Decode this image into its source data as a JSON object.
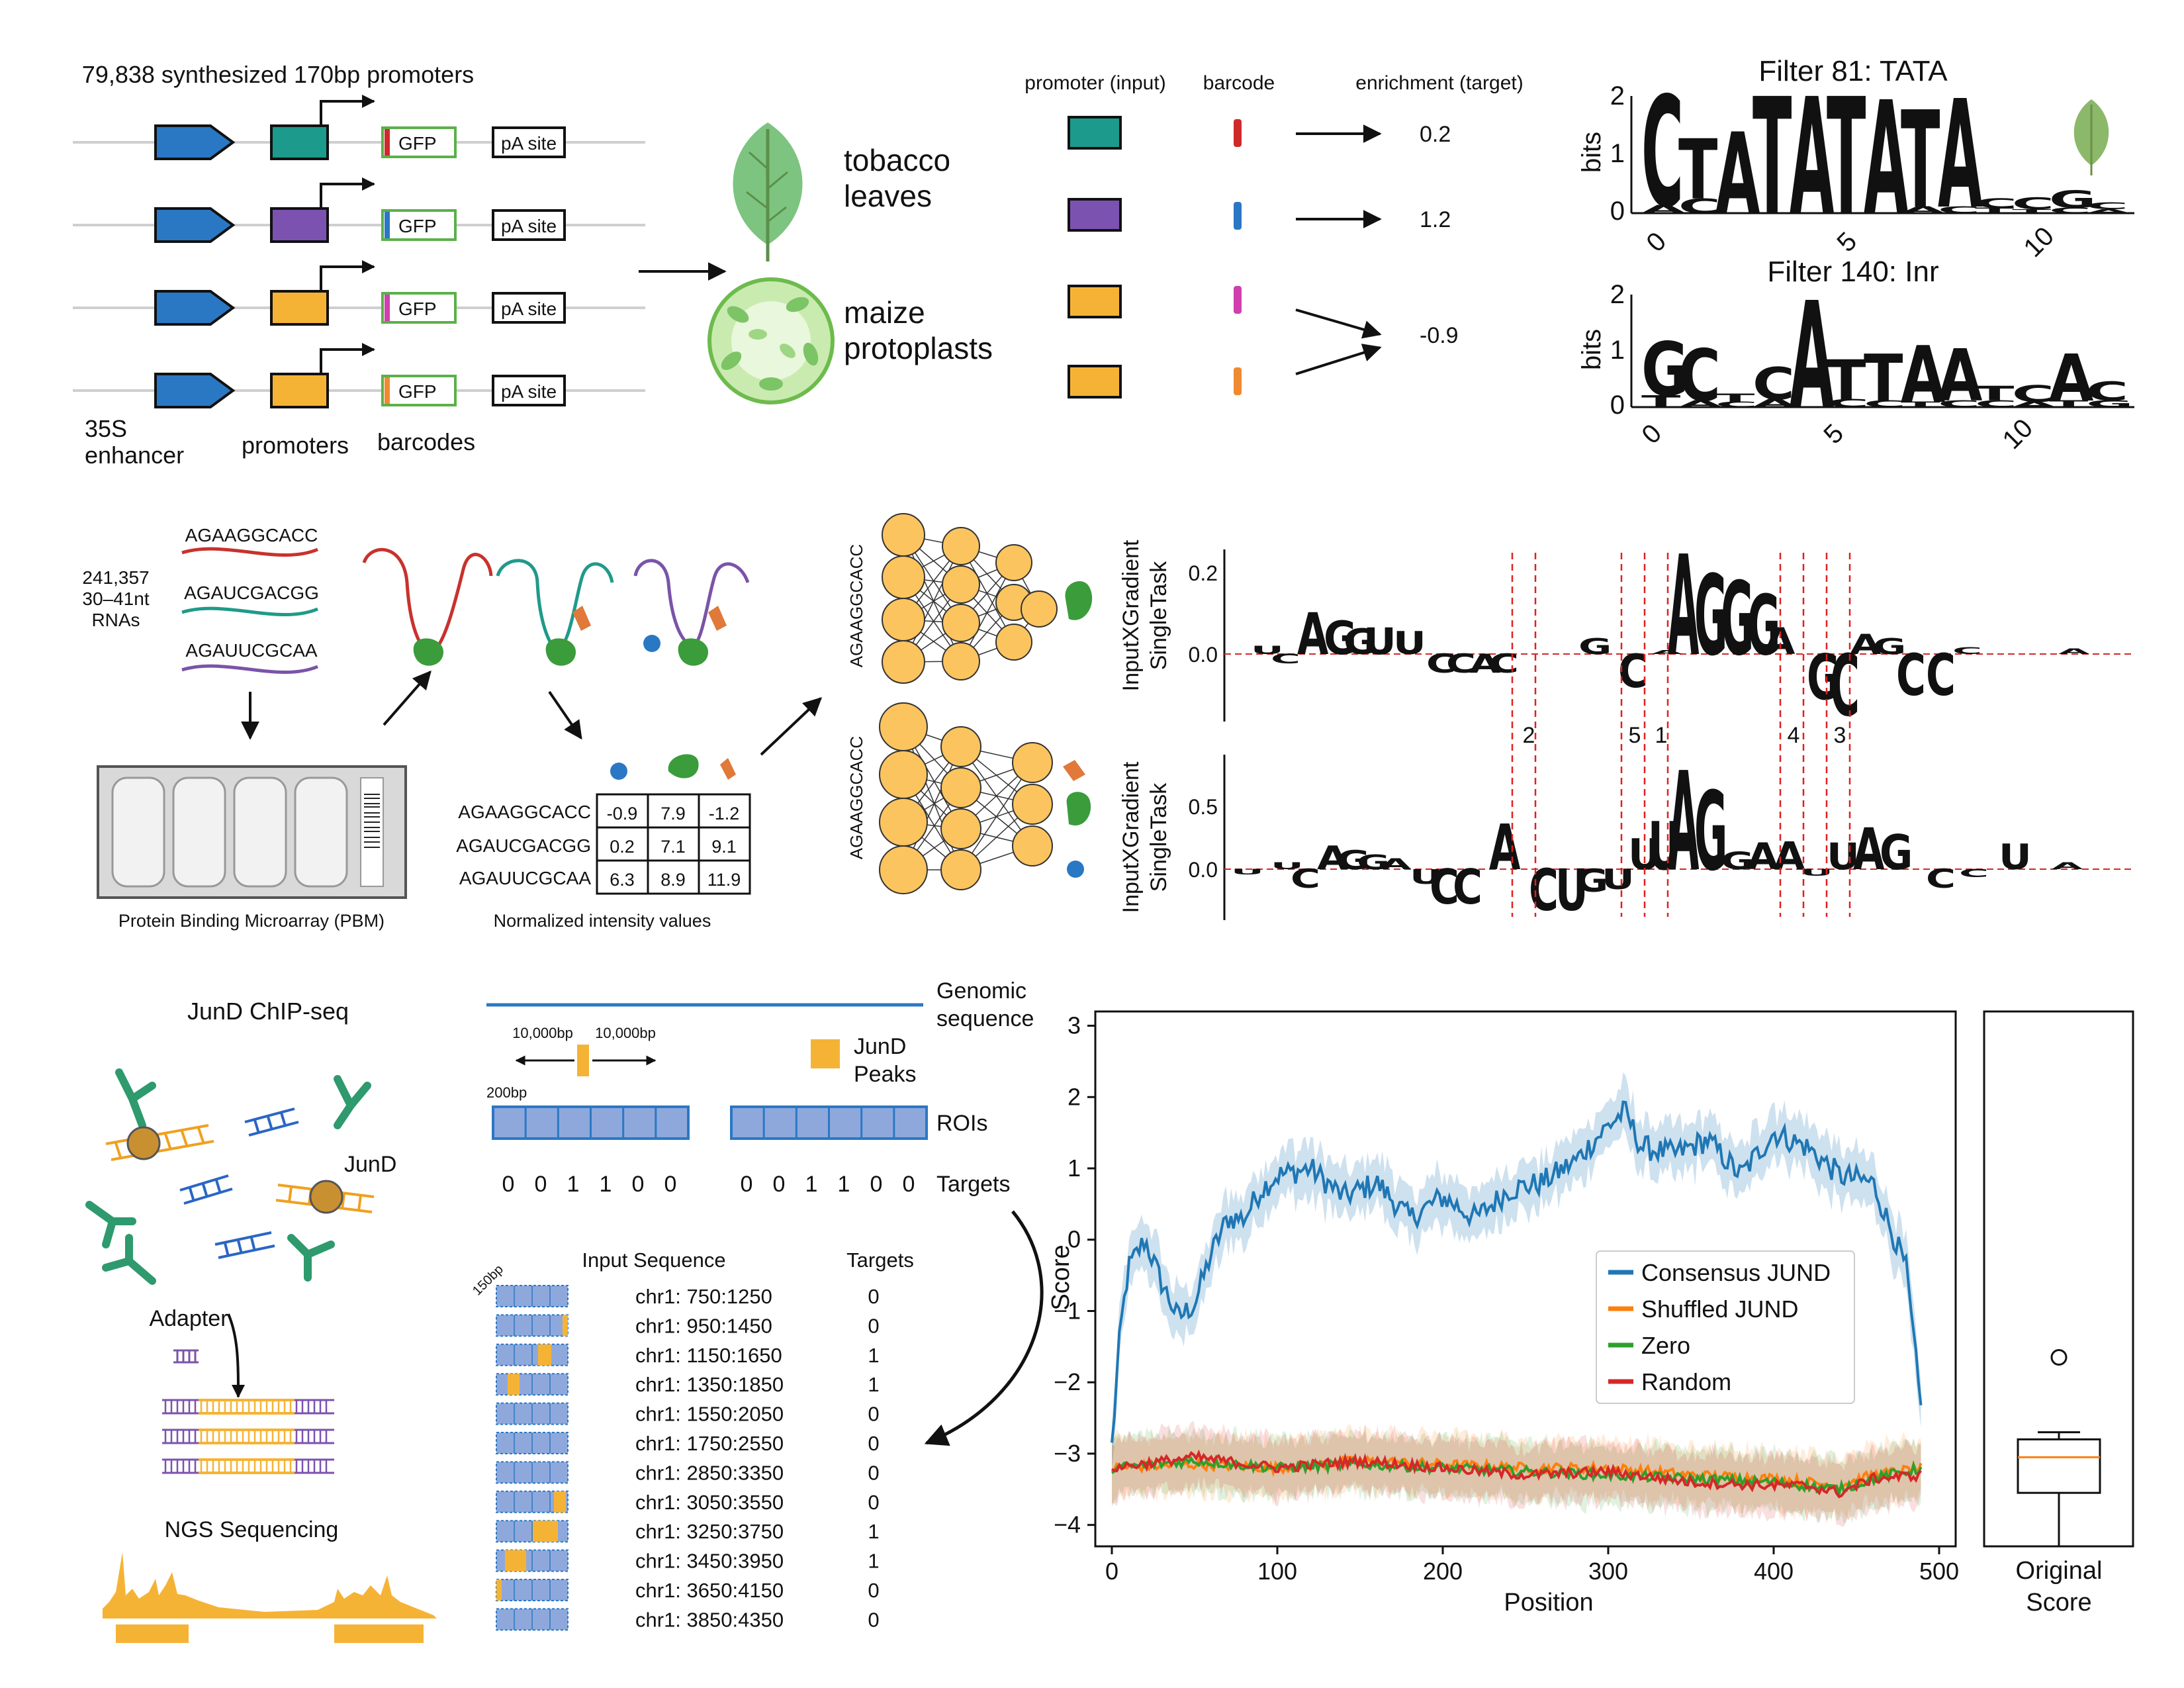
{
  "colors": {
    "blue": "#2a78c4",
    "teal": "#1c9a8c",
    "purple": "#7b52b0",
    "orange": "#f5b335",
    "red": "#cf2a2a",
    "green": "#2c8a3a",
    "pink": "#cf3fae",
    "seq_red": "#c8322d",
    "seq_teal": "#1f9a8a",
    "seq_purple": "#7a54a8",
    "nn_node": "#fbc45f",
    "roi": "#8fa8dc",
    "logo_A": "#1b8a3a",
    "logo_C": "#2b4fa6",
    "logo_G": "#f0a800",
    "logo_T": "#e52b28",
    "jund": "#1f77b4",
    "shuffled": "#ff7f0e",
    "zero": "#2ca02c",
    "random": "#d62728"
  },
  "panel_a": {
    "title": "79,838 synthesized 170bp promoters",
    "gfp": "GFP",
    "pa_site": "pA site",
    "enhancer_label": [
      "35S",
      "enhancer"
    ],
    "promoters_label": "promoters",
    "barcodes_label": "barcodes",
    "tobacco": [
      "tobacco",
      "leaves"
    ],
    "maize": [
      "maize",
      "protoplasts"
    ],
    "col_promoter": "promoter (input)",
    "col_barcode": "barcode",
    "col_enrichment": "enrichment (target)",
    "enrichment_values": [
      "0.2",
      "1.2",
      "-0.9"
    ]
  },
  "motif_logos": [
    {
      "title": "Filter 81: TATA",
      "ylabel": "bits",
      "yticks": [
        "2",
        "1",
        "0"
      ],
      "xticks": [
        "0",
        "5",
        "10"
      ],
      "letters": "CTATATATA"
    },
    {
      "title": "Filter 140: Inr",
      "ylabel": "bits",
      "yticks": [
        "2",
        "1",
        "0"
      ],
      "xticks": [
        "0",
        "5",
        "10"
      ],
      "letters": "GCCATTAAA"
    }
  ],
  "panel_b": {
    "rna_count": [
      "241,357",
      "30–41nt",
      "RNAs"
    ],
    "sequences": [
      "AGAAGGCACC",
      "AGAUCGACGG",
      "AGAUUCGCAA"
    ],
    "pbm_label": "Protein Binding Microarray (PBM)",
    "intensity_label": "Normalized intensity values",
    "intensity_table": [
      [
        "-0.9",
        "7.9",
        "-1.2"
      ],
      [
        "0.2",
        "7.1",
        "9.1"
      ],
      [
        "6.3",
        "8.9",
        "11.9"
      ]
    ],
    "nn_input_seq": "AGAAGGCACC"
  },
  "attribution": {
    "ylabel": [
      "InputXGradient",
      "SingleTask"
    ],
    "top_yticks": [
      "0.2",
      "0.0"
    ],
    "bottom_yticks": [
      "0.5",
      "0.0"
    ],
    "markers": [
      "2",
      "5",
      "1",
      "4",
      "3"
    ]
  },
  "panel_c": {
    "chip_title": "JunD ChIP-seq",
    "jund_label": "JunD",
    "adapter": "Adapter",
    "ngs": "NGS Sequencing",
    "genomic": [
      "Genomic",
      "sequence"
    ],
    "bp_left": "10,000bp",
    "bp_right": "10,000bp",
    "bp_200": "200bp",
    "jund_peaks": [
      "JunD",
      "Peaks"
    ],
    "rois": "ROIs",
    "targets_label": "Targets",
    "targets_row1": [
      "0",
      "0",
      "1",
      "1",
      "0",
      "0"
    ],
    "targets_row2": [
      "0",
      "0",
      "1",
      "1",
      "0",
      "0"
    ],
    "bp_150": "150bp",
    "input_header": "Input Sequence",
    "targets_header": "Targets",
    "input_rows": [
      {
        "region": "chr1: 750:1250",
        "target": "0"
      },
      {
        "region": "chr1: 950:1450",
        "target": "0"
      },
      {
        "region": "chr1: 1150:1650",
        "target": "1"
      },
      {
        "region": "chr1: 1350:1850",
        "target": "1"
      },
      {
        "region": "chr1: 1550:2050",
        "target": "0"
      },
      {
        "region": "chr1: 1750:2550",
        "target": "0"
      },
      {
        "region": "chr1: 2850:3350",
        "target": "0"
      },
      {
        "region": "chr1: 3050:3550",
        "target": "0"
      },
      {
        "region": "chr1: 3250:3750",
        "target": "1"
      },
      {
        "region": "chr1: 3450:3950",
        "target": "1"
      },
      {
        "region": "chr1: 3650:4150",
        "target": "0"
      },
      {
        "region": "chr1: 3850:4350",
        "target": "0"
      }
    ]
  },
  "chart_data": [
    {
      "type": "line",
      "xlabel": "Position",
      "ylabel": "Score",
      "xlim": [
        0,
        500
      ],
      "ylim": [
        -4.3,
        3.2
      ],
      "xticks": [
        "0",
        "100",
        "200",
        "300",
        "400",
        "500"
      ],
      "yticks": [
        "3",
        "2",
        "1",
        "0",
        "−1",
        "−2",
        "−3",
        "−4"
      ],
      "legend_position": "center-right",
      "series": [
        {
          "name": "Consensus JUND",
          "x": [
            0,
            5,
            10,
            20,
            30,
            40,
            50,
            60,
            70,
            80,
            90,
            100,
            120,
            140,
            160,
            180,
            200,
            220,
            240,
            260,
            280,
            300,
            310,
            320,
            340,
            360,
            380,
            400,
            420,
            440,
            460,
            470,
            480,
            490
          ],
          "y": [
            -2.9,
            -1.3,
            -0.4,
            0.0,
            -0.6,
            -1.1,
            -0.9,
            -0.2,
            0.3,
            0.3,
            0.7,
            0.9,
            1.0,
            0.6,
            0.8,
            0.3,
            0.6,
            0.3,
            0.7,
            0.8,
            1.1,
            1.6,
            1.8,
            1.3,
            1.2,
            1.4,
            0.9,
            1.5,
            1.3,
            0.9,
            0.8,
            0.2,
            -0.4,
            -2.6
          ]
        },
        {
          "name": "Shuffled JUND",
          "x": [
            0,
            50,
            100,
            150,
            200,
            250,
            300,
            350,
            400,
            420,
            440,
            460,
            490
          ],
          "y": [
            -3.2,
            -3.15,
            -3.2,
            -3.1,
            -3.15,
            -3.2,
            -3.2,
            -3.3,
            -3.35,
            -3.4,
            -3.45,
            -3.3,
            -3.2
          ]
        },
        {
          "name": "Zero",
          "x": [
            0,
            50,
            100,
            150,
            200,
            250,
            300,
            350,
            400,
            420,
            440,
            460,
            490
          ],
          "y": [
            -3.2,
            -3.1,
            -3.2,
            -3.15,
            -3.2,
            -3.25,
            -3.3,
            -3.35,
            -3.4,
            -3.45,
            -3.5,
            -3.35,
            -3.2
          ]
        },
        {
          "name": "Random",
          "x": [
            0,
            50,
            100,
            150,
            200,
            250,
            300,
            350,
            400,
            420,
            440,
            460,
            490
          ],
          "y": [
            -3.2,
            -3.05,
            -3.2,
            -3.1,
            -3.2,
            -3.3,
            -3.25,
            -3.4,
            -3.45,
            -3.45,
            -3.55,
            -3.35,
            -3.3
          ]
        }
      ]
    },
    {
      "type": "box",
      "xlabel": [
        "Original",
        "Score"
      ],
      "ylim": [
        -4.3,
        3.2
      ],
      "box": {
        "whisker_low": -4.3,
        "q1": -3.55,
        "median": -3.05,
        "q3": -2.8,
        "whisker_high": -2.7,
        "outlier": -1.65
      }
    }
  ]
}
